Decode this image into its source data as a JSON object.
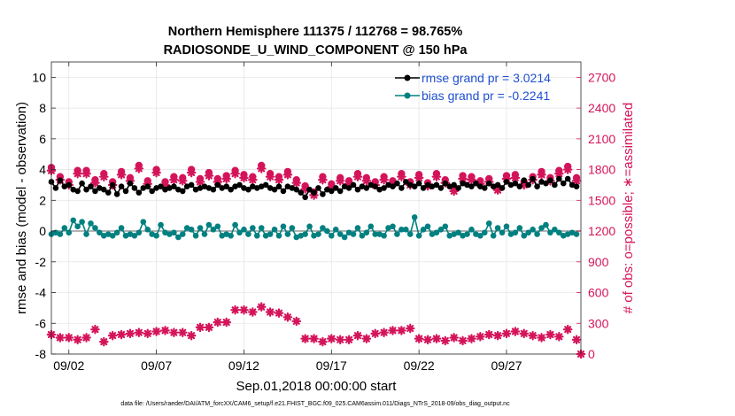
{
  "chart_data": {
    "type": "line",
    "title_line1": "Northern Hemisphere 111375 / 112768 = 98.765%",
    "title_line2": "RADIOSONDE_U_WIND_COMPONENT @ 150 hPa",
    "xlabel": "Sep.01,2018 00:00:00 start",
    "ylabel_left": "rmse and bias (model - observation)",
    "ylabel_right": "# of obs: o=possible; ∗=assimilated",
    "footnote": "data file: /Users/raeder/DAI/ATM_forcXX/CAM6_setup/f.e21.FHIST_BGC.f09_025.CAM6assim.011/Diags_NTrS_2018-09/obs_diag_output.nc",
    "x_ticks": [
      {
        "x": 2,
        "label": "09/02"
      },
      {
        "x": 7,
        "label": "09/07"
      },
      {
        "x": 12,
        "label": "09/12"
      },
      {
        "x": 17,
        "label": "09/17"
      },
      {
        "x": 22,
        "label": "09/22"
      },
      {
        "x": 27,
        "label": "09/27"
      }
    ],
    "xlim": [
      1,
      31.25
    ],
    "ylim_left": [
      -8,
      11
    ],
    "left_ticks": [
      -8,
      -6,
      -4,
      -2,
      0,
      2,
      4,
      6,
      8,
      10
    ],
    "ylim_right": [
      0,
      2850
    ],
    "right_ticks": [
      0,
      300,
      600,
      900,
      1200,
      1500,
      1800,
      2100,
      2400,
      2700
    ],
    "colors": {
      "rmse": "#000000",
      "bias": "#008080",
      "obs": "#d4145a",
      "legend_text": "#1f4fd1",
      "grid": "#e6e6e6",
      "zero_line": "#b3b3b3"
    },
    "series": [
      {
        "name": "rmse",
        "legend": "rmse grand pr = 3.0214",
        "x": [
          1.0,
          1.25,
          1.5,
          1.75,
          2.0,
          2.25,
          2.5,
          2.75,
          3.0,
          3.25,
          3.5,
          3.75,
          4.0,
          4.25,
          4.5,
          4.75,
          5.0,
          5.25,
          5.5,
          5.75,
          6.0,
          6.25,
          6.5,
          6.75,
          7.0,
          7.25,
          7.5,
          7.75,
          8.0,
          8.25,
          8.5,
          8.75,
          9.0,
          9.25,
          9.5,
          9.75,
          10.0,
          10.25,
          10.5,
          10.75,
          11.0,
          11.25,
          11.5,
          11.75,
          12.0,
          12.25,
          12.5,
          12.75,
          13.0,
          13.25,
          13.5,
          13.75,
          14.0,
          14.25,
          14.5,
          14.75,
          15.0,
          15.25,
          15.5,
          15.75,
          16.0,
          16.25,
          16.5,
          16.75,
          17.0,
          17.25,
          17.5,
          17.75,
          18.0,
          18.25,
          18.5,
          18.75,
          19.0,
          19.25,
          19.5,
          19.75,
          20.0,
          20.25,
          20.5,
          20.75,
          21.0,
          21.25,
          21.5,
          21.75,
          22.0,
          22.25,
          22.5,
          22.75,
          23.0,
          23.25,
          23.5,
          23.75,
          24.0,
          24.25,
          24.5,
          24.75,
          25.0,
          25.25,
          25.5,
          25.75,
          26.0,
          26.25,
          26.5,
          26.75,
          27.0,
          27.25,
          27.5,
          27.75,
          28.0,
          28.25,
          28.5,
          28.75,
          29.0,
          29.25,
          29.5,
          29.75,
          30.0,
          30.25,
          30.5,
          30.75,
          31.0
        ],
        "values": [
          3.2,
          2.8,
          3.3,
          2.9,
          3.0,
          2.7,
          2.6,
          3.1,
          2.7,
          2.9,
          2.6,
          2.8,
          2.7,
          2.5,
          3.0,
          2.4,
          2.9,
          2.6,
          3.1,
          2.8,
          2.5,
          2.8,
          2.9,
          2.6,
          2.8,
          2.9,
          2.7,
          2.8,
          2.9,
          2.7,
          2.6,
          2.9,
          3.0,
          2.7,
          2.8,
          2.9,
          2.8,
          2.7,
          3.0,
          2.8,
          2.9,
          2.7,
          2.9,
          3.0,
          2.8,
          2.7,
          2.9,
          2.8,
          2.9,
          3.0,
          2.8,
          2.7,
          2.9,
          2.6,
          2.9,
          2.8,
          2.7,
          2.5,
          2.2,
          2.7,
          2.5,
          2.8,
          2.4,
          2.7,
          2.6,
          2.8,
          2.6,
          2.9,
          2.8,
          3.0,
          2.7,
          2.9,
          2.8,
          3.0,
          2.9,
          2.7,
          2.8,
          3.0,
          2.9,
          3.1,
          2.8,
          3.2,
          3.0,
          2.9,
          3.1,
          2.8,
          3.0,
          2.9,
          3.0,
          2.8,
          3.1,
          2.9,
          3.0,
          2.8,
          3.1,
          3.0,
          2.9,
          3.1,
          2.9,
          2.8,
          3.1,
          2.9,
          3.0,
          2.8,
          3.2,
          3.0,
          3.1,
          2.9,
          3.3,
          3.0,
          3.4,
          2.9,
          3.2,
          3.1,
          3.3,
          3.0,
          3.4,
          3.1,
          3.4,
          3.0,
          2.9
        ]
      },
      {
        "name": "bias",
        "legend": "bias grand pr = -0.2241",
        "x": [
          1.0,
          1.25,
          1.5,
          1.75,
          2.0,
          2.25,
          2.5,
          2.75,
          3.0,
          3.25,
          3.5,
          3.75,
          4.0,
          4.25,
          4.5,
          4.75,
          5.0,
          5.25,
          5.5,
          5.75,
          6.0,
          6.25,
          6.5,
          6.75,
          7.0,
          7.25,
          7.5,
          7.75,
          8.0,
          8.25,
          8.5,
          8.75,
          9.0,
          9.25,
          9.5,
          9.75,
          10.0,
          10.25,
          10.5,
          10.75,
          11.0,
          11.25,
          11.5,
          11.75,
          12.0,
          12.25,
          12.5,
          12.75,
          13.0,
          13.25,
          13.5,
          13.75,
          14.0,
          14.25,
          14.5,
          14.75,
          15.0,
          15.25,
          15.5,
          15.75,
          16.0,
          16.25,
          16.5,
          16.75,
          17.0,
          17.25,
          17.5,
          17.75,
          18.0,
          18.25,
          18.5,
          18.75,
          19.0,
          19.25,
          19.5,
          19.75,
          20.0,
          20.25,
          20.5,
          20.75,
          21.0,
          21.25,
          21.5,
          21.75,
          22.0,
          22.25,
          22.5,
          22.75,
          23.0,
          23.25,
          23.5,
          23.75,
          24.0,
          24.25,
          24.5,
          24.75,
          25.0,
          25.25,
          25.5,
          25.75,
          26.0,
          26.25,
          26.5,
          26.75,
          27.0,
          27.25,
          27.5,
          27.75,
          28.0,
          28.25,
          28.5,
          28.75,
          29.0,
          29.25,
          29.5,
          29.75,
          30.0,
          30.25,
          30.5,
          30.75,
          31.0
        ],
        "values": [
          -0.2,
          -0.1,
          -0.2,
          0.2,
          -0.1,
          0.7,
          0.3,
          0.6,
          -0.2,
          0.5,
          0.2,
          -0.1,
          -0.3,
          -0.2,
          -0.3,
          -0.1,
          0.2,
          -0.3,
          -0.2,
          -0.3,
          -0.1,
          0.6,
          0.1,
          -0.2,
          -0.3,
          0.4,
          -0.1,
          -0.2,
          -0.1,
          -0.4,
          -0.2,
          0.2,
          0.1,
          -0.3,
          0.2,
          -0.2,
          0.4,
          0.1,
          0.3,
          -0.3,
          -0.2,
          -0.3,
          0.4,
          -0.1,
          0.1,
          -0.2,
          0.2,
          -0.3,
          0.2,
          -0.3,
          -0.2,
          0.1,
          -0.3,
          0.3,
          -0.2,
          0.2,
          -0.4,
          -0.3,
          -0.2,
          0.3,
          -0.3,
          -0.2,
          0.2,
          0.0,
          -0.3,
          0.1,
          -0.2,
          -0.4,
          -0.1,
          -0.2,
          0.2,
          -0.3,
          -0.1,
          0.3,
          -0.2,
          -0.2,
          -0.3,
          0.2,
          0.3,
          -0.2,
          0.1,
          0.1,
          -0.2,
          0.9,
          -0.3,
          0.1,
          0.3,
          -0.2,
          -0.1,
          0.1,
          0.3,
          -0.3,
          -0.2,
          -0.1,
          -0.3,
          -0.2,
          0.1,
          -0.2,
          -0.3,
          -0.1,
          0.5,
          -0.3,
          0.2,
          -0.1,
          0.3,
          -0.2,
          -0.1,
          0.2,
          -0.3,
          -0.1,
          0.1,
          -0.2,
          0.2,
          0.4,
          -0.1,
          0.1,
          -0.1,
          -0.3,
          -0.2,
          -0.1,
          -0.2
        ]
      },
      {
        "name": "obs_possible",
        "axis": "right",
        "marker": "o",
        "x": [
          1.0,
          1.5,
          2.0,
          2.5,
          3.0,
          3.5,
          4.0,
          4.5,
          5.0,
          5.5,
          6.0,
          6.5,
          7.0,
          7.5,
          8.0,
          8.5,
          9.0,
          9.5,
          10.0,
          10.5,
          11.0,
          11.5,
          12.0,
          12.5,
          13.0,
          13.5,
          14.0,
          14.5,
          15.0,
          15.5,
          16.0,
          16.5,
          17.0,
          17.5,
          18.0,
          18.5,
          19.0,
          19.5,
          20.0,
          20.5,
          21.0,
          21.5,
          22.0,
          22.5,
          23.0,
          23.5,
          24.0,
          24.5,
          25.0,
          25.5,
          26.0,
          26.5,
          27.0,
          27.5,
          28.0,
          28.5,
          29.0,
          29.5,
          30.0,
          30.5,
          31.0
        ],
        "values": [
          1820,
          1730,
          1680,
          1790,
          1790,
          1700,
          1760,
          1680,
          1780,
          1720,
          1840,
          1690,
          1800,
          1680,
          1730,
          1720,
          1800,
          1710,
          1770,
          1710,
          1740,
          1790,
          1750,
          1730,
          1840,
          1760,
          1730,
          1780,
          1700,
          1640,
          1580,
          1730,
          1660,
          1720,
          1690,
          1760,
          1720,
          1680,
          1730,
          1690,
          1760,
          1680,
          1750,
          1670,
          1760,
          1700,
          1620,
          1740,
          1730,
          1690,
          1710,
          1630,
          1740,
          1750,
          1680,
          1730,
          1780,
          1720,
          1790,
          1830,
          1720
        ]
      },
      {
        "name": "obs_assimilated",
        "axis": "right",
        "marker": "*",
        "x": [
          1.0,
          1.5,
          2.0,
          2.5,
          3.0,
          3.5,
          4.0,
          4.5,
          5.0,
          5.5,
          6.0,
          6.5,
          7.0,
          7.5,
          8.0,
          8.5,
          9.0,
          9.5,
          10.0,
          10.5,
          11.0,
          11.5,
          12.0,
          12.5,
          13.0,
          13.5,
          14.0,
          14.5,
          15.0,
          15.5,
          16.0,
          16.5,
          17.0,
          17.5,
          18.0,
          18.5,
          19.0,
          19.5,
          20.0,
          20.5,
          21.0,
          21.5,
          22.0,
          22.5,
          23.0,
          23.5,
          24.0,
          24.5,
          25.0,
          25.5,
          26.0,
          26.5,
          27.0,
          27.5,
          28.0,
          28.5,
          29.0,
          29.5,
          30.0,
          30.5,
          31.0
        ],
        "values": [
          1790,
          1700,
          1650,
          1760,
          1760,
          1670,
          1730,
          1650,
          1750,
          1690,
          1810,
          1660,
          1770,
          1650,
          1700,
          1690,
          1770,
          1680,
          1740,
          1680,
          1710,
          1760,
          1720,
          1700,
          1810,
          1730,
          1700,
          1750,
          1670,
          1610,
          1550,
          1700,
          1630,
          1690,
          1660,
          1730,
          1690,
          1650,
          1700,
          1660,
          1730,
          1650,
          1720,
          1640,
          1730,
          1670,
          1590,
          1710,
          1700,
          1660,
          1680,
          1600,
          1710,
          1720,
          1650,
          1700,
          1750,
          1690,
          1760,
          1800,
          1690
        ]
      },
      {
        "name": "obs_bottom",
        "axis": "right",
        "marker": "*",
        "x": [
          1.0,
          1.5,
          2.0,
          2.5,
          3.0,
          3.5,
          4.0,
          4.5,
          5.0,
          5.5,
          6.0,
          6.5,
          7.0,
          7.5,
          8.0,
          8.5,
          9.0,
          9.5,
          10.0,
          10.5,
          11.0,
          11.5,
          12.0,
          12.5,
          13.0,
          13.5,
          14.0,
          14.5,
          15.0,
          15.5,
          16.0,
          16.5,
          17.0,
          17.5,
          18.0,
          18.5,
          19.0,
          19.5,
          20.0,
          20.5,
          21.0,
          21.5,
          22.0,
          22.5,
          23.0,
          23.5,
          24.0,
          24.5,
          25.0,
          25.5,
          26.0,
          26.5,
          27.0,
          27.5,
          28.0,
          28.5,
          29.0,
          29.5,
          30.0,
          30.5,
          31.0,
          31.25
        ],
        "values": [
          190,
          160,
          160,
          140,
          160,
          240,
          120,
          180,
          190,
          200,
          210,
          200,
          220,
          230,
          210,
          210,
          180,
          260,
          260,
          310,
          310,
          430,
          430,
          410,
          460,
          410,
          400,
          360,
          320,
          150,
          150,
          120,
          150,
          140,
          140,
          180,
          150,
          200,
          210,
          230,
          230,
          250,
          150,
          140,
          150,
          130,
          160,
          130,
          150,
          170,
          190,
          180,
          200,
          220,
          200,
          180,
          160,
          190,
          170,
          240,
          140,
          0
        ]
      }
    ]
  }
}
